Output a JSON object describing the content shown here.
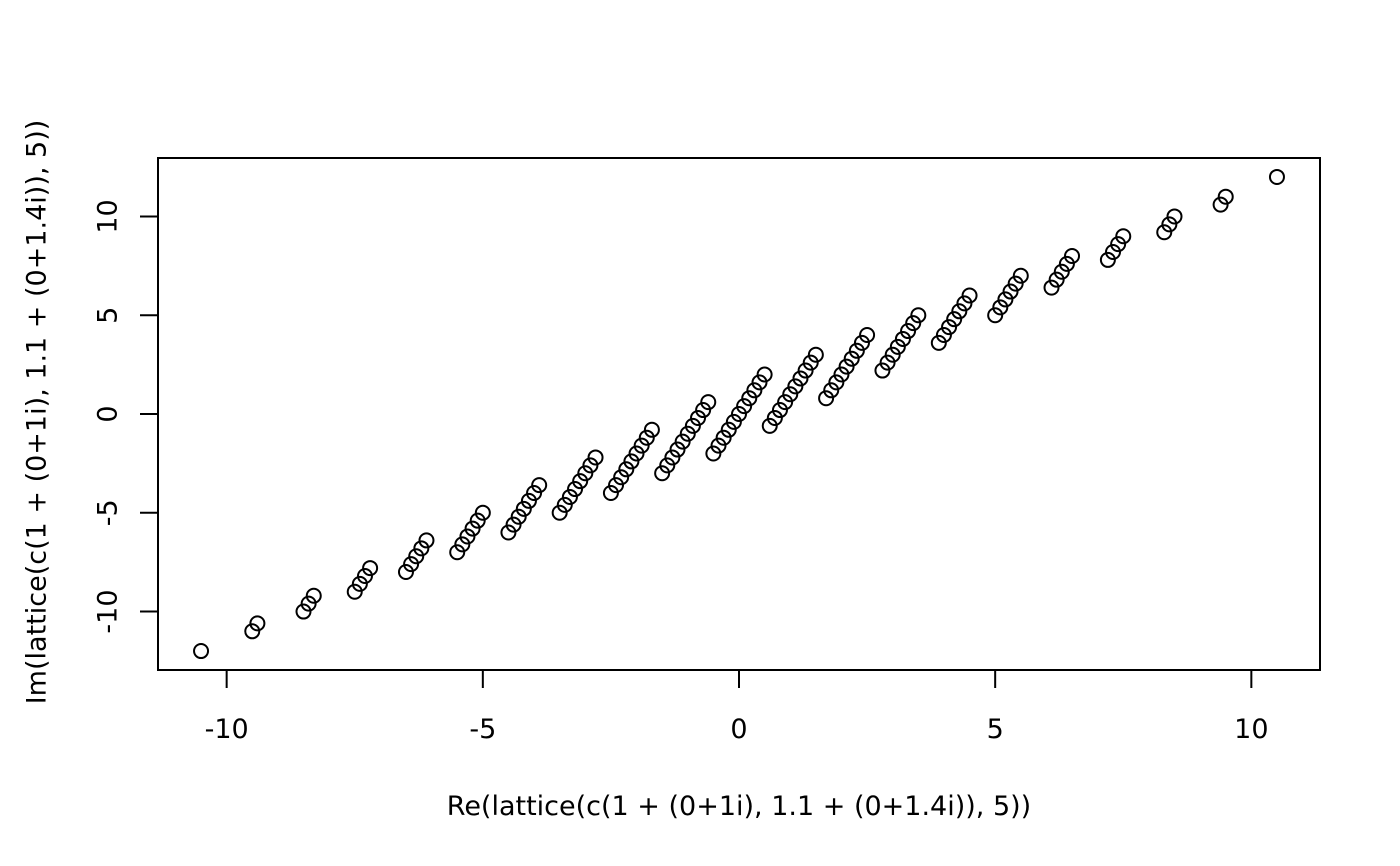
{
  "chart_data": {
    "type": "scatter",
    "title": "",
    "xlabel": "Re(lattice(c(1 + (0+1i), 1.1 + (0+1.4i)), 5))",
    "ylabel": "Im(lattice(c(1 + (0+1i), 1.1 + (0+1.4i)), 5))",
    "xlim": [
      -11.34,
      11.34
    ],
    "ylim": [
      -12.96,
      12.96
    ],
    "xticks": [
      -10,
      -5,
      0,
      5,
      10
    ],
    "yticks": [
      -10,
      -5,
      0,
      5,
      10
    ],
    "xtick_labels": [
      "-10",
      "-5",
      "0",
      "5",
      "10"
    ],
    "ytick_labels": [
      "-10",
      "-5",
      "0",
      "5",
      "10"
    ],
    "grid": false,
    "legend": "none",
    "marker": "open-circle",
    "note_points": "generated from m*(1+1i) + n*(1.1+1.4i), m,n in -5..5",
    "points": [
      [
        -10.5,
        -12
      ],
      [
        -9.5,
        -11
      ],
      [
        -8.5,
        -10
      ],
      [
        -7.5,
        -9
      ],
      [
        -6.5,
        -8
      ],
      [
        -5.5,
        -7
      ],
      [
        -4.5,
        -6
      ],
      [
        -3.5,
        -5
      ],
      [
        -2.5,
        -4
      ],
      [
        -1.5,
        -3
      ],
      [
        -0.5,
        -2
      ],
      [
        -9.4,
        -10.6
      ],
      [
        -8.4,
        -9.6
      ],
      [
        -7.4,
        -8.6
      ],
      [
        -6.4,
        -7.6
      ],
      [
        -5.4,
        -6.6
      ],
      [
        -4.4,
        -5.6
      ],
      [
        -3.4,
        -4.6
      ],
      [
        -2.4,
        -3.6
      ],
      [
        -1.4,
        -2.6
      ],
      [
        -0.4,
        -1.6
      ],
      [
        0.6,
        -0.6
      ],
      [
        -8.3,
        -9.2
      ],
      [
        -7.3,
        -8.2
      ],
      [
        -6.3,
        -7.2
      ],
      [
        -5.3,
        -6.2
      ],
      [
        -4.3,
        -5.2
      ],
      [
        -3.3,
        -4.2
      ],
      [
        -2.3,
        -3.2
      ],
      [
        -1.3,
        -2.2
      ],
      [
        -0.3,
        -1.2
      ],
      [
        0.7,
        -0.2
      ],
      [
        1.7,
        0.8
      ],
      [
        -7.2,
        -7.8
      ],
      [
        -6.2,
        -6.8
      ],
      [
        -5.2,
        -5.8
      ],
      [
        -4.2,
        -4.8
      ],
      [
        -3.2,
        -3.8
      ],
      [
        -2.2,
        -2.8
      ],
      [
        -1.2,
        -1.8
      ],
      [
        -0.2,
        -0.8
      ],
      [
        0.8,
        0.2
      ],
      [
        1.8,
        1.2
      ],
      [
        2.8,
        2.2
      ],
      [
        -6.1,
        -6.4
      ],
      [
        -5.1,
        -5.4
      ],
      [
        -4.1,
        -4.4
      ],
      [
        -3.1,
        -3.4
      ],
      [
        -2.1,
        -2.4
      ],
      [
        -1.1,
        -1.4
      ],
      [
        -0.1,
        -0.4
      ],
      [
        0.9,
        0.6
      ],
      [
        1.9,
        1.6
      ],
      [
        2.9,
        2.6
      ],
      [
        3.9,
        3.6
      ],
      [
        -5,
        -5
      ],
      [
        -4,
        -4
      ],
      [
        -3,
        -3
      ],
      [
        -2,
        -2
      ],
      [
        -1,
        -1
      ],
      [
        0,
        0
      ],
      [
        1,
        1
      ],
      [
        2,
        2
      ],
      [
        3,
        3
      ],
      [
        4,
        4
      ],
      [
        5,
        5
      ],
      [
        -3.9,
        -3.6
      ],
      [
        -2.9,
        -2.6
      ],
      [
        -1.9,
        -1.6
      ],
      [
        -0.9,
        -0.6
      ],
      [
        0.1,
        0.4
      ],
      [
        1.1,
        1.4
      ],
      [
        2.1,
        2.4
      ],
      [
        3.1,
        3.4
      ],
      [
        4.1,
        4.4
      ],
      [
        5.1,
        5.4
      ],
      [
        6.1,
        6.4
      ],
      [
        -2.8,
        -2.2
      ],
      [
        -1.8,
        -1.2
      ],
      [
        -0.8,
        -0.2
      ],
      [
        0.2,
        0.8
      ],
      [
        1.2,
        1.8
      ],
      [
        2.2,
        2.8
      ],
      [
        3.2,
        3.8
      ],
      [
        4.2,
        4.8
      ],
      [
        5.2,
        5.8
      ],
      [
        6.2,
        6.8
      ],
      [
        7.2,
        7.8
      ],
      [
        -1.7,
        -0.8
      ],
      [
        -0.7,
        0.2
      ],
      [
        0.3,
        1.2
      ],
      [
        1.3,
        2.2
      ],
      [
        2.3,
        3.2
      ],
      [
        3.3,
        4.2
      ],
      [
        4.3,
        5.2
      ],
      [
        5.3,
        6.2
      ],
      [
        6.3,
        7.2
      ],
      [
        7.3,
        8.2
      ],
      [
        8.3,
        9.2
      ],
      [
        -0.6,
        0.6
      ],
      [
        0.4,
        1.6
      ],
      [
        1.4,
        2.6
      ],
      [
        2.4,
        3.6
      ],
      [
        3.4,
        4.6
      ],
      [
        4.4,
        5.6
      ],
      [
        5.4,
        6.6
      ],
      [
        6.4,
        7.6
      ],
      [
        7.4,
        8.6
      ],
      [
        8.4,
        9.6
      ],
      [
        9.4,
        10.6
      ],
      [
        0.5,
        2
      ],
      [
        1.5,
        3
      ],
      [
        2.5,
        4
      ],
      [
        3.5,
        5
      ],
      [
        4.5,
        6
      ],
      [
        5.5,
        7
      ],
      [
        6.5,
        8
      ],
      [
        7.5,
        9
      ],
      [
        8.5,
        10
      ],
      [
        9.5,
        11
      ],
      [
        10.5,
        12
      ]
    ]
  }
}
